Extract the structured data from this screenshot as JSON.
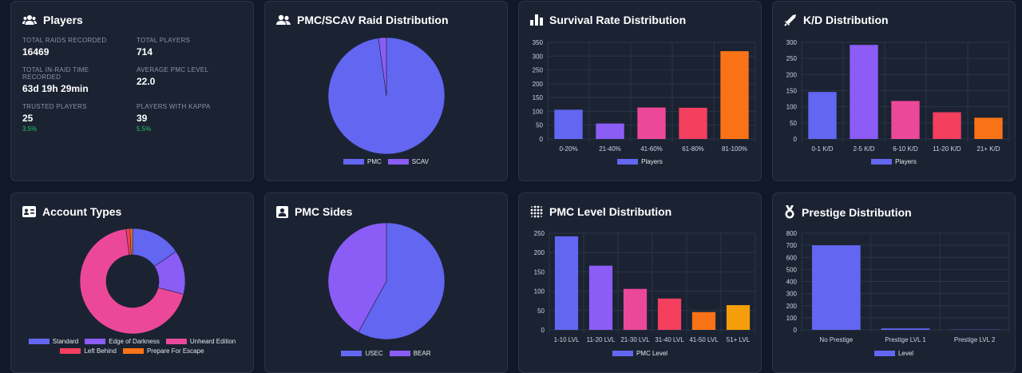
{
  "players_card": {
    "title": "Players",
    "stats": [
      {
        "label": "TOTAL RAIDS RECORDED",
        "value": "16469"
      },
      {
        "label": "TOTAL PLAYERS",
        "value": "714"
      },
      {
        "label": "TOTAL IN-RAID TIME RECORDED",
        "value": "63d 19h 29min"
      },
      {
        "label": "AVERAGE PMC LEVEL",
        "value": "22.0"
      },
      {
        "label": "TRUSTED PLAYERS",
        "value": "25",
        "sub": "3.5%"
      },
      {
        "label": "PLAYERS WITH KAPPA",
        "value": "39",
        "sub": "5.5%"
      }
    ]
  },
  "chart_data": [
    {
      "id": "raid-distribution",
      "type": "pie",
      "title": "PMC/SCAV Raid Distribution",
      "labels": [
        "PMC",
        "SCAV"
      ],
      "values": [
        97.8,
        2.2
      ],
      "colors": [
        "#6366f1",
        "#8b5cf6"
      ]
    },
    {
      "id": "survival-rate",
      "type": "bar",
      "title": "Survival Rate Distribution",
      "categories": [
        "0-20%",
        "21-40%",
        "41-60%",
        "61-80%",
        "81-100%"
      ],
      "values": [
        106,
        56,
        114,
        113,
        318
      ],
      "colors": [
        "#6366f1",
        "#8b5cf6",
        "#ec4899",
        "#f43f5e",
        "#f97316"
      ],
      "series_name": "Players",
      "y_ticks": [
        0,
        50,
        100,
        150,
        200,
        250,
        300,
        350
      ],
      "ylim": [
        0,
        350
      ]
    },
    {
      "id": "kd-distribution",
      "type": "bar",
      "title": "K/D Distribution",
      "categories": [
        "0-1 K/D",
        "2-5 K/D",
        "6-10 K/D",
        "11-20 K/D",
        "21+ K/D"
      ],
      "values": [
        146,
        292,
        118,
        83,
        66
      ],
      "colors": [
        "#6366f1",
        "#8b5cf6",
        "#ec4899",
        "#f43f5e",
        "#f97316"
      ],
      "series_name": "Players",
      "y_ticks": [
        0,
        50,
        100,
        150,
        200,
        250,
        300
      ],
      "ylim": [
        0,
        300
      ]
    },
    {
      "id": "account-types",
      "type": "doughnut",
      "title": "Account Types",
      "labels": [
        "Standard",
        "Edge of Darkness",
        "Unheard Edition",
        "Left Behind",
        "Prepare For Escape"
      ],
      "values": [
        15.5,
        13.5,
        69.0,
        1.2,
        0.8
      ],
      "colors": [
        "#6366f1",
        "#8b5cf6",
        "#ec4899",
        "#f43f5e",
        "#f97316"
      ]
    },
    {
      "id": "pmc-sides",
      "type": "pie",
      "title": "PMC Sides",
      "labels": [
        "USEC",
        "BEAR"
      ],
      "values": [
        58,
        42
      ],
      "colors": [
        "#6366f1",
        "#8b5cf6"
      ]
    },
    {
      "id": "pmc-level",
      "type": "bar",
      "title": "PMC Level Distribution",
      "categories": [
        "1-10 LVL",
        "11-20 LVL",
        "21-30 LVL",
        "31-40 LVL",
        "41-50 LVL",
        "51+ LVL"
      ],
      "values": [
        242,
        166,
        106,
        81,
        46,
        64
      ],
      "colors": [
        "#6366f1",
        "#8b5cf6",
        "#ec4899",
        "#f43f5e",
        "#f97316",
        "#f59e0b"
      ],
      "series_name": "PMC Level",
      "y_ticks": [
        0,
        50,
        100,
        150,
        200,
        250
      ],
      "ylim": [
        0,
        250
      ]
    },
    {
      "id": "prestige",
      "type": "bar",
      "title": "Prestige Distribution",
      "categories": [
        "No Prestige",
        "Prestige LVL 1",
        "Prestige LVL 2"
      ],
      "values": [
        700,
        12,
        2
      ],
      "colors": [
        "#6366f1",
        "#6366f1",
        "#6366f1"
      ],
      "series_name": "Level",
      "y_ticks": [
        0,
        100,
        200,
        300,
        400,
        500,
        600,
        700,
        800
      ],
      "ylim": [
        0,
        800
      ]
    }
  ]
}
